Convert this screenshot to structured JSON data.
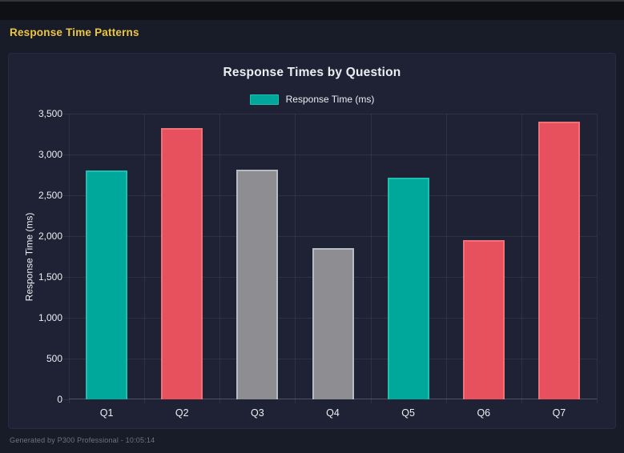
{
  "header": {
    "title": "Response Time Patterns"
  },
  "footer": {
    "text": "Generated by P300 Professional - 10:05:14"
  },
  "colors": {
    "top_strip_bg": "#0e1016",
    "top_strip_edge": "#33353a",
    "page_bg": "#181c29",
    "card_bg": "#1e2234",
    "card_border": "#272c42",
    "accent_yellow": "#edc63c",
    "text_primary": "#eceef2",
    "text_muted": "#6e7380",
    "grid_line": "rgba(255,255,255,0.07)",
    "axis_line": "rgba(255,255,255,0.22)"
  },
  "chart_data": {
    "type": "bar",
    "title": "Response Times by Question",
    "legend": [
      {
        "label": "Response Time (ms)",
        "color": "teal"
      }
    ],
    "categories": [
      "Q1",
      "Q2",
      "Q3",
      "Q4",
      "Q5",
      "Q6",
      "Q7"
    ],
    "values": [
      2800,
      3325,
      2810,
      1850,
      2720,
      1950,
      3400
    ],
    "bar_colors": [
      "teal",
      "red",
      "gray",
      "gray",
      "teal",
      "red",
      "red"
    ],
    "palette": {
      "teal": {
        "fill": "#00a89b",
        "border": "#1fbfb0"
      },
      "red": {
        "fill": "#e7515d",
        "border": "#ef727b"
      },
      "gray": {
        "fill": "#8d8d92",
        "border": "#b7bbc2"
      }
    },
    "xlabel": "",
    "ylabel": "Response Time (ms)",
    "ylim": [
      0,
      3500
    ],
    "ytick_step": 500,
    "grid": true,
    "legend_position": "top"
  }
}
